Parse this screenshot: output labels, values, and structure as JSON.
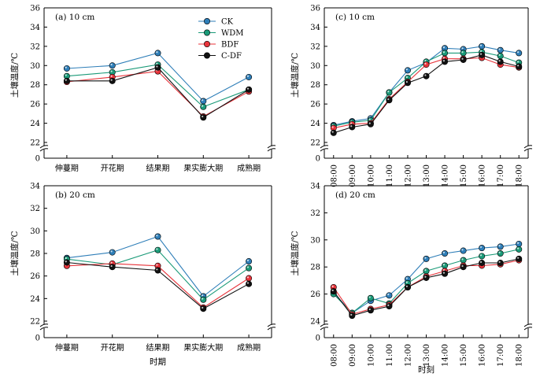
{
  "chart_data": [
    {
      "id": "a",
      "type": "line",
      "title": "(a) 10 cm",
      "ylabel": "土壤温度/℃",
      "xlabel": "",
      "categories": [
        "伸蔓期",
        "开花期",
        "结果期",
        "果实膨大期",
        "成熟期"
      ],
      "ylim": [
        0,
        36
      ],
      "yticks": [
        0,
        22,
        24,
        26,
        28,
        30,
        32,
        34,
        36
      ],
      "axis_break": true,
      "legend": "top-right",
      "series": [
        {
          "name": "CK",
          "values": [
            29.7,
            30.0,
            31.3,
            26.3,
            28.8
          ]
        },
        {
          "name": "WDM",
          "values": [
            28.9,
            29.3,
            30.1,
            25.7,
            27.5
          ]
        },
        {
          "name": "BDF",
          "values": [
            28.3,
            28.8,
            29.4,
            24.7,
            27.3
          ]
        },
        {
          "name": "C-DF",
          "values": [
            28.4,
            28.4,
            29.8,
            24.6,
            27.5
          ]
        }
      ]
    },
    {
      "id": "c",
      "type": "line",
      "title": "(c) 10 cm",
      "ylabel": "土壤温度/℃",
      "xlabel": "",
      "categories": [
        "08:00",
        "09:00",
        "10:00",
        "11:00",
        "12:00",
        "13:00",
        "14:00",
        "15:00",
        "16:00",
        "17:00",
        "18:00"
      ],
      "ylim": [
        0,
        36
      ],
      "yticks": [
        0,
        22,
        24,
        26,
        28,
        30,
        32,
        34,
        36
      ],
      "axis_break": true,
      "series": [
        {
          "name": "CK",
          "values": [
            23.8,
            24.2,
            24.5,
            27.2,
            29.5,
            30.3,
            31.8,
            31.7,
            32.0,
            31.6,
            31.3
          ]
        },
        {
          "name": "WDM",
          "values": [
            23.7,
            24.1,
            24.3,
            27.2,
            28.7,
            30.4,
            31.3,
            31.3,
            31.4,
            31.0,
            30.3
          ]
        },
        {
          "name": "BDF",
          "values": [
            23.5,
            23.9,
            24.0,
            26.5,
            28.3,
            30.1,
            30.7,
            30.7,
            30.8,
            30.1,
            29.8
          ]
        },
        {
          "name": "C-DF",
          "values": [
            23.0,
            23.6,
            23.9,
            26.4,
            28.2,
            28.9,
            30.4,
            30.6,
            31.1,
            30.4,
            29.9
          ]
        }
      ]
    },
    {
      "id": "b",
      "type": "line",
      "title": "(b) 20 cm",
      "ylabel": "土壤温度/℃",
      "xlabel": "时期",
      "categories": [
        "伸蔓期",
        "开花期",
        "结果期",
        "果实膨大期",
        "成熟期"
      ],
      "ylim": [
        0,
        34
      ],
      "yticks": [
        0,
        22,
        24,
        26,
        28,
        30,
        32,
        34
      ],
      "axis_break": true,
      "series": [
        {
          "name": "CK",
          "values": [
            27.6,
            28.1,
            29.5,
            24.2,
            27.3
          ]
        },
        {
          "name": "WDM",
          "values": [
            27.5,
            27.0,
            28.3,
            23.9,
            26.7
          ]
        },
        {
          "name": "BDF",
          "values": [
            26.9,
            27.1,
            26.9,
            23.2,
            25.8
          ]
        },
        {
          "name": "C-DF",
          "values": [
            27.2,
            26.8,
            26.5,
            23.1,
            25.3
          ]
        }
      ]
    },
    {
      "id": "d",
      "type": "line",
      "title": "(d) 20 cm",
      "ylabel": "土壤温度/℃",
      "xlabel": "时刻",
      "categories": [
        "08:00",
        "09:00",
        "10:00",
        "11:00",
        "12:00",
        "13:00",
        "14:00",
        "15:00",
        "16:00",
        "17:00",
        "18:00"
      ],
      "ylim": [
        0,
        34
      ],
      "yticks": [
        0,
        24,
        26,
        28,
        30,
        32,
        34
      ],
      "axis_break": true,
      "series": [
        {
          "name": "CK",
          "values": [
            26.1,
            24.6,
            25.5,
            25.9,
            27.1,
            28.6,
            29.0,
            29.2,
            29.4,
            29.5,
            29.7
          ]
        },
        {
          "name": "WDM",
          "values": [
            26.0,
            24.6,
            25.7,
            25.3,
            26.8,
            27.7,
            28.1,
            28.5,
            28.8,
            29.0,
            29.3
          ]
        },
        {
          "name": "BDF",
          "values": [
            26.5,
            24.5,
            24.9,
            25.2,
            26.5,
            27.3,
            27.7,
            28.1,
            28.1,
            28.2,
            28.5
          ]
        },
        {
          "name": "C-DF",
          "values": [
            26.2,
            24.4,
            24.8,
            25.1,
            26.5,
            27.2,
            27.5,
            28.0,
            28.3,
            28.3,
            28.6
          ]
        }
      ]
    }
  ],
  "series_colors": {
    "CK": "#2e7eb8",
    "WDM": "#1a9a78",
    "BDF": "#e8333a",
    "C-DF": "#111111"
  },
  "legend_entries": [
    "CK",
    "WDM",
    "BDF",
    "C-DF"
  ]
}
